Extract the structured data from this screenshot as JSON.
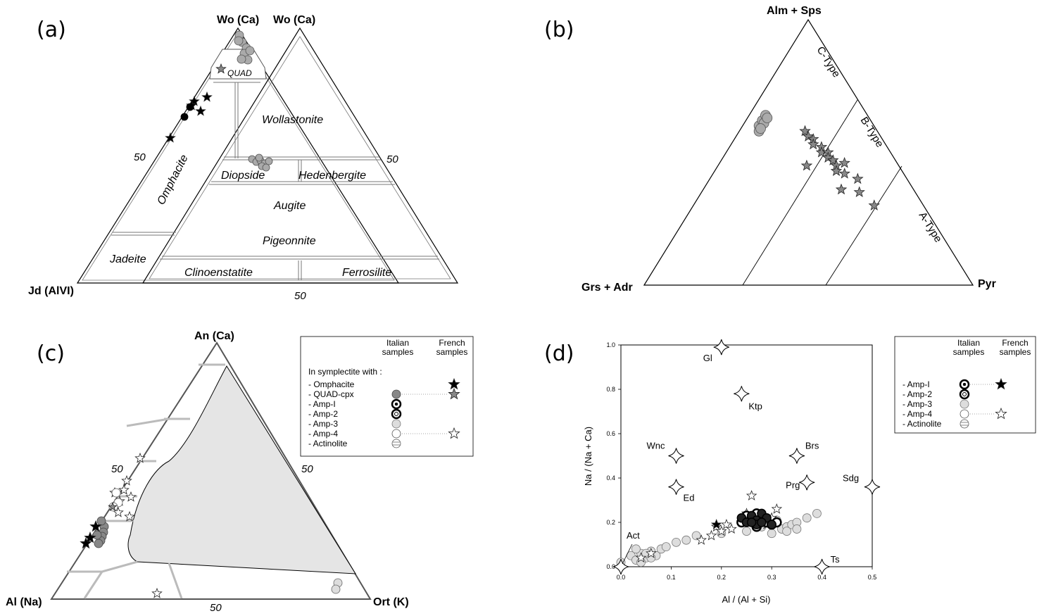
{
  "panels": {
    "a": {
      "label": "(a)",
      "top_left": "Wo (Ca)",
      "top_right": "Wo (Ca)",
      "bottom_left": "Jd (AlVI)",
      "tick_left": "50",
      "tick_right": "50",
      "tick_bottom": "50",
      "fields": [
        "QUAD",
        "Wollastonite",
        "Diopside",
        "Hedenbergite",
        "Augite",
        "Pigeonnite",
        "Clinoenstatite",
        "Ferrosilite",
        "Jadeite",
        "Omphacite"
      ]
    },
    "b": {
      "label": "(b)",
      "top": "Alm + Sps",
      "left": "Grs + Adr",
      "right": "Pyr",
      "fields": [
        "C-Type",
        "B-Type",
        "A-Type"
      ]
    },
    "c": {
      "label": "(c)",
      "top": "An (Ca)",
      "left": "Al (Na)",
      "right": "Ort (K)",
      "tick_left": "50",
      "tick_right": "50",
      "tick_bottom": "50"
    },
    "d": {
      "label": "(d)"
    }
  },
  "legend_c": {
    "col1": "Italian\nsamples",
    "col2": "French\nsamples",
    "intro": "In symplectite with :",
    "items": [
      "- Omphacite",
      "- QUAD-cpx",
      "- Amp-I",
      "- Amp-2",
      "- Amp-3",
      "- Amp-4",
      "- Actinolite"
    ]
  },
  "legend_d": {
    "col1": "Italian\nsamples",
    "col2": "French\nsamples",
    "items": [
      "- Amp-I",
      "- Amp-2",
      "- Amp-3",
      "- Amp-4",
      "- Actinolite"
    ]
  },
  "chart_data": [
    {
      "type": "scatter",
      "panel": "d",
      "xlabel": "Al / (Al + Si)",
      "ylabel": "Na / (Na + Ca)",
      "xlim": [
        0,
        0.5
      ],
      "ylim": [
        0,
        1.0
      ],
      "xticks": [
        "0.0",
        "0.1",
        "0.2",
        "0.3",
        "0.4",
        "0.5"
      ],
      "yticks": [
        "0.0",
        "0.2",
        "0.4",
        "0.6",
        "0.8",
        "1.0"
      ],
      "end_members": [
        {
          "name": "Gl",
          "x": 0.2,
          "y": 0.99
        },
        {
          "name": "Ktp",
          "x": 0.24,
          "y": 0.78
        },
        {
          "name": "Wnc",
          "x": 0.11,
          "y": 0.5
        },
        {
          "name": "Brs",
          "x": 0.35,
          "y": 0.5
        },
        {
          "name": "Ed",
          "x": 0.11,
          "y": 0.36
        },
        {
          "name": "Prg",
          "x": 0.37,
          "y": 0.38
        },
        {
          "name": "Sdg",
          "x": 0.5,
          "y": 0.36
        },
        {
          "name": "Act",
          "x": 0.0,
          "y": 0.0
        },
        {
          "name": "Ts",
          "x": 0.4,
          "y": 0.0
        }
      ],
      "series": [
        {
          "name": "Amp-I",
          "points": [
            [
              0.24,
              0.22
            ],
            [
              0.25,
              0.2
            ],
            [
              0.26,
              0.23
            ],
            [
              0.27,
              0.21
            ],
            [
              0.28,
              0.24
            ],
            [
              0.27,
              0.19
            ],
            [
              0.29,
              0.22
            ],
            [
              0.26,
              0.2
            ],
            [
              0.28,
              0.2
            ],
            [
              0.3,
              0.19
            ]
          ]
        },
        {
          "name": "Amp-2",
          "points": [
            [
              0.24,
              0.2
            ],
            [
              0.25,
              0.23
            ],
            [
              0.26,
              0.22
            ],
            [
              0.27,
              0.24
            ],
            [
              0.28,
              0.22
            ],
            [
              0.29,
              0.2
            ],
            [
              0.3,
              0.19
            ],
            [
              0.27,
              0.18
            ],
            [
              0.31,
              0.2
            ]
          ]
        },
        {
          "name": "Amp-3",
          "points": [
            [
              0.0,
              0.02
            ],
            [
              0.02,
              0.05
            ],
            [
              0.03,
              0.03
            ],
            [
              0.04,
              0.06
            ],
            [
              0.05,
              0.04
            ],
            [
              0.06,
              0.07
            ],
            [
              0.07,
              0.05
            ],
            [
              0.08,
              0.08
            ],
            [
              0.03,
              0.08
            ],
            [
              0.05,
              0.06
            ],
            [
              0.06,
              0.04
            ],
            [
              0.04,
              0.02
            ],
            [
              0.09,
              0.09
            ],
            [
              0.11,
              0.11
            ],
            [
              0.13,
              0.12
            ],
            [
              0.15,
              0.14
            ],
            [
              0.2,
              0.15
            ],
            [
              0.25,
              0.16
            ],
            [
              0.3,
              0.15
            ],
            [
              0.32,
              0.17
            ],
            [
              0.33,
              0.18
            ],
            [
              0.34,
              0.19
            ],
            [
              0.35,
              0.2
            ],
            [
              0.37,
              0.22
            ],
            [
              0.39,
              0.24
            ],
            [
              0.31,
              0.21
            ],
            [
              0.33,
              0.16
            ],
            [
              0.35,
              0.17
            ],
            [
              0.28,
              0.18
            ],
            [
              0.3,
              0.2
            ]
          ]
        },
        {
          "name": "Amp-4",
          "points": [
            [
              0.04,
              0.04
            ],
            [
              0.06,
              0.06
            ],
            [
              0.16,
              0.12
            ],
            [
              0.18,
              0.14
            ],
            [
              0.19,
              0.18
            ],
            [
              0.2,
              0.16
            ],
            [
              0.21,
              0.19
            ],
            [
              0.22,
              0.17
            ],
            [
              0.24,
              0.2
            ],
            [
              0.25,
              0.24
            ],
            [
              0.26,
              0.32
            ],
            [
              0.3,
              0.22
            ],
            [
              0.31,
              0.26
            ],
            [
              0.29,
              0.19
            ],
            [
              0.27,
              0.23
            ]
          ]
        },
        {
          "name": "French Amp-I",
          "points": [
            [
              0.19,
              0.19
            ]
          ]
        }
      ]
    },
    {
      "type": "ternary",
      "panel": "b",
      "apices": [
        "Alm + Sps",
        "Grs + Adr",
        "Pyr"
      ],
      "series": [
        {
          "name": "QUAD-cpx (Italian)",
          "points": [
            [
              0.6,
              0.35,
              0.05
            ],
            [
              0.62,
              0.33,
              0.05
            ],
            [
              0.64,
              0.31,
              0.05
            ],
            [
              0.58,
              0.36,
              0.06
            ],
            [
              0.61,
              0.33,
              0.06
            ],
            [
              0.63,
              0.31,
              0.06
            ],
            [
              0.59,
              0.35,
              0.06
            ]
          ]
        },
        {
          "name": "QUAD-cpx (French)",
          "points": [
            [
              0.58,
              0.22,
              0.2
            ],
            [
              0.56,
              0.22,
              0.22
            ],
            [
              0.55,
              0.21,
              0.24
            ],
            [
              0.53,
              0.22,
              0.25
            ],
            [
              0.52,
              0.2,
              0.28
            ],
            [
              0.5,
              0.21,
              0.29
            ],
            [
              0.5,
              0.19,
              0.31
            ],
            [
              0.48,
              0.2,
              0.32
            ],
            [
              0.47,
              0.19,
              0.34
            ],
            [
              0.45,
              0.19,
              0.36
            ],
            [
              0.43,
              0.2,
              0.37
            ],
            [
              0.46,
              0.16,
              0.38
            ],
            [
              0.42,
              0.18,
              0.4
            ],
            [
              0.4,
              0.15,
              0.45
            ],
            [
              0.35,
              0.17,
              0.48
            ],
            [
              0.3,
              0.15,
              0.55
            ],
            [
              0.45,
              0.28,
              0.27
            ],
            [
              0.36,
              0.22,
              0.42
            ]
          ]
        }
      ]
    }
  ]
}
